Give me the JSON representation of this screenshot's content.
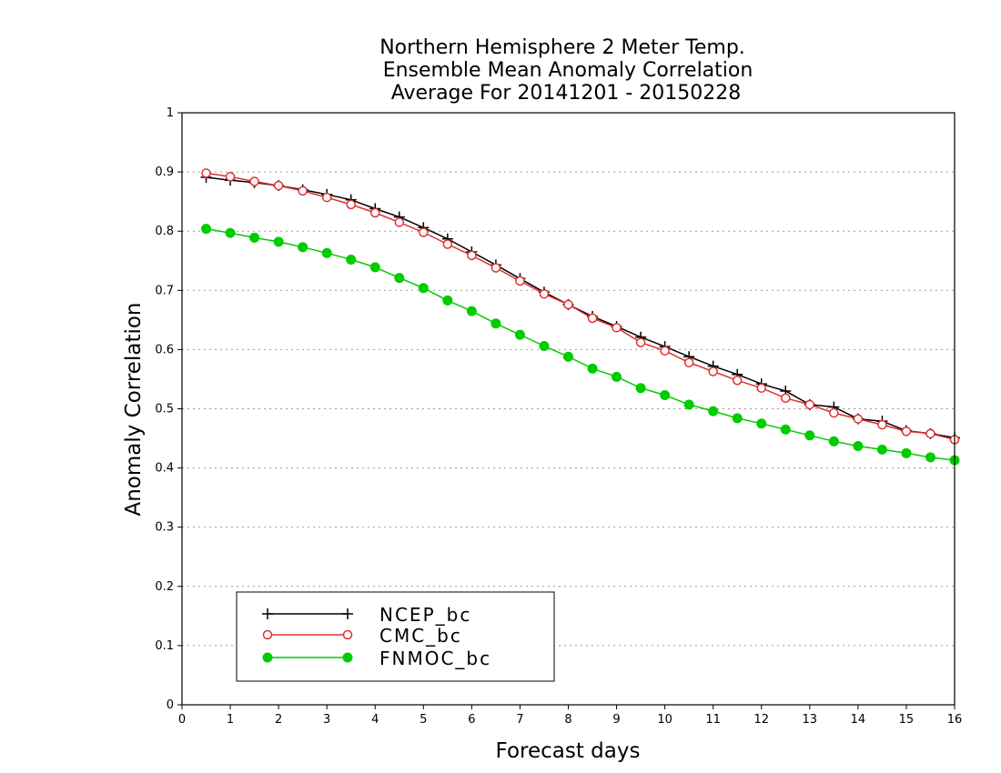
{
  "chart_data": {
    "type": "line",
    "title": [
      "Northern Hemisphere 2 Meter Temp.",
      "Ensemble Mean Anomaly Correlation",
      "Average For 20141201 - 20150228"
    ],
    "xlabel": "Forecast days",
    "ylabel": "Anomaly Correlation",
    "xlim": [
      0,
      16
    ],
    "ylim": [
      0,
      1
    ],
    "xticks": [
      "0",
      "1",
      "2",
      "3",
      "4",
      "5",
      "6",
      "7",
      "8",
      "9",
      "10",
      "11",
      "12",
      "13",
      "14",
      "15",
      "16"
    ],
    "yticks": [
      "0",
      "0.1",
      "0.2",
      "0.3",
      "0.4",
      "0.5",
      "0.6",
      "0.7",
      "0.8",
      "0.9",
      "1"
    ],
    "grid": "horizontal-dotted",
    "legend_position": "bottom-left",
    "x": [
      0.5,
      1,
      1.5,
      2,
      2.5,
      3,
      3.5,
      4,
      4.5,
      5,
      5.5,
      6,
      6.5,
      7,
      7.5,
      8,
      8.5,
      9,
      9.5,
      10,
      10.5,
      11,
      11.5,
      12,
      12.5,
      13,
      13.5,
      14,
      14.5,
      15,
      15.5,
      16
    ],
    "series": [
      {
        "name": "NCEP_bc",
        "color": "#000000",
        "marker": "plus",
        "values": [
          0.891,
          0.886,
          0.882,
          0.877,
          0.87,
          0.862,
          0.853,
          0.838,
          0.824,
          0.806,
          0.787,
          0.765,
          0.743,
          0.72,
          0.697,
          0.676,
          0.656,
          0.639,
          0.621,
          0.605,
          0.588,
          0.572,
          0.558,
          0.542,
          0.53,
          0.507,
          0.503,
          0.483,
          0.479,
          0.463,
          0.458,
          0.451
        ]
      },
      {
        "name": "CMC_bc",
        "color": "#e03030",
        "marker": "open-circle",
        "values": [
          0.898,
          0.892,
          0.884,
          0.877,
          0.868,
          0.857,
          0.845,
          0.831,
          0.815,
          0.798,
          0.778,
          0.759,
          0.738,
          0.716,
          0.694,
          0.676,
          0.653,
          0.637,
          0.612,
          0.598,
          0.578,
          0.563,
          0.548,
          0.535,
          0.518,
          0.507,
          0.493,
          0.483,
          0.473,
          0.462,
          0.458,
          0.448
        ]
      },
      {
        "name": "FNMOC_bc",
        "color": "#00cc00",
        "marker": "filled-circle",
        "values": [
          0.804,
          0.797,
          0.789,
          0.782,
          0.773,
          0.763,
          0.752,
          0.739,
          0.721,
          0.704,
          0.683,
          0.665,
          0.644,
          0.625,
          0.606,
          0.588,
          0.568,
          0.554,
          0.535,
          0.523,
          0.507,
          0.496,
          0.484,
          0.475,
          0.465,
          0.455,
          0.445,
          0.437,
          0.431,
          0.425,
          0.418,
          0.413
        ]
      }
    ]
  }
}
